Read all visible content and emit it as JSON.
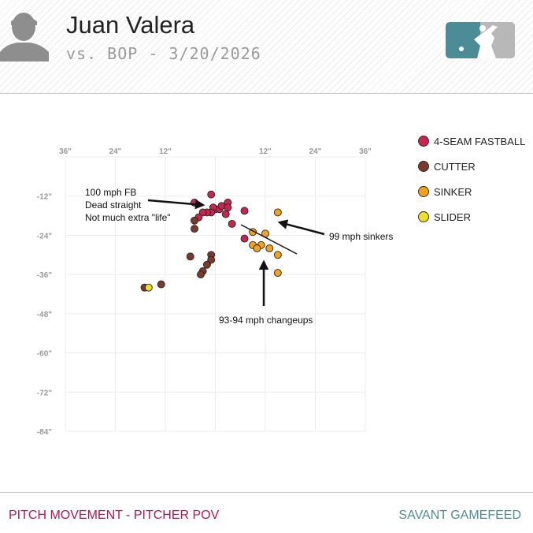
{
  "header": {
    "player_name": "Juan Valera",
    "game_line": "vs. BOP - 3/20/2026"
  },
  "footer": {
    "left_label": "PITCH MOVEMENT - PITCHER POV",
    "right_label": "SAVANT GAMEFEED"
  },
  "colors": {
    "four_seam": "#c8264f",
    "cutter": "#7a3a2c",
    "sinker": "#f5a21b",
    "slider": "#ecdf26",
    "footer_left": "#b8144e",
    "footer_right": "#4c8c96",
    "logo_left": "#4c8c96",
    "logo_right": "#b8b8b8"
  },
  "icons": [
    "player-silhouette-icon",
    "mlb-logo-icon"
  ],
  "chart_data": {
    "type": "scatter",
    "xlim": [
      -36,
      36
    ],
    "ylim": [
      -84,
      0
    ],
    "x_ticks": [
      {
        "value": -36,
        "label": "36\""
      },
      {
        "value": -24,
        "label": "24\""
      },
      {
        "value": -12,
        "label": "12\""
      },
      {
        "value": 12,
        "label": "12\""
      },
      {
        "value": 24,
        "label": "24\""
      },
      {
        "value": 36,
        "label": "36\""
      }
    ],
    "y_ticks": [
      {
        "value": -12,
        "label": "-12\""
      },
      {
        "value": -24,
        "label": "-24\""
      },
      {
        "value": -36,
        "label": "-36\""
      },
      {
        "value": -48,
        "label": "-48\""
      },
      {
        "value": -60,
        "label": "-60\""
      },
      {
        "value": -72,
        "label": "-72\""
      },
      {
        "value": -84,
        "label": "-84\""
      }
    ],
    "grid": true,
    "legend_position": "top-right",
    "series": [
      {
        "name": "4-SEAM FASTBALL",
        "color": "#c8264f",
        "points": [
          [
            -5,
            -14
          ],
          [
            -1,
            -11.5
          ],
          [
            0,
            -16
          ],
          [
            1,
            -16
          ],
          [
            3,
            -14
          ],
          [
            1.5,
            -15
          ],
          [
            -0.5,
            -15.5
          ],
          [
            -1,
            -17
          ],
          [
            -2,
            -17
          ],
          [
            -3,
            -17
          ],
          [
            -4,
            -18.5
          ],
          [
            2.5,
            -17.5
          ],
          [
            3,
            -15.5
          ],
          [
            4,
            -20.5
          ],
          [
            7,
            -16.5
          ],
          [
            7,
            -25
          ]
        ]
      },
      {
        "name": "CUTTER",
        "color": "#7a3a2c",
        "points": [
          [
            -5,
            -19.5
          ],
          [
            -5,
            -22
          ],
          [
            -1,
            -30
          ],
          [
            -1,
            -31.5
          ],
          [
            -2,
            -33
          ],
          [
            -6,
            -30.5
          ],
          [
            -3,
            -35
          ],
          [
            -3.5,
            -36
          ],
          [
            -13,
            -39
          ],
          [
            -17,
            -40
          ]
        ]
      },
      {
        "name": "SINKER",
        "color": "#f5a21b",
        "points": [
          [
            9,
            -23
          ],
          [
            12,
            -23.5
          ],
          [
            15,
            -17
          ],
          [
            9,
            -27
          ],
          [
            11,
            -27
          ],
          [
            10,
            -28
          ],
          [
            13,
            -28
          ],
          [
            15,
            -30
          ],
          [
            15,
            -35.5
          ]
        ]
      },
      {
        "name": "SLIDER",
        "color": "#ecdf26",
        "points": [
          [
            -16,
            -40
          ]
        ]
      }
    ],
    "annotations": [
      {
        "text": [
          "100 mph FB",
          "Dead straight",
          "Not much extra \"life\""
        ]
      },
      {
        "text": [
          "99 mph sinkers"
        ]
      },
      {
        "text": [
          "93-94 mph changeups"
        ]
      }
    ]
  }
}
